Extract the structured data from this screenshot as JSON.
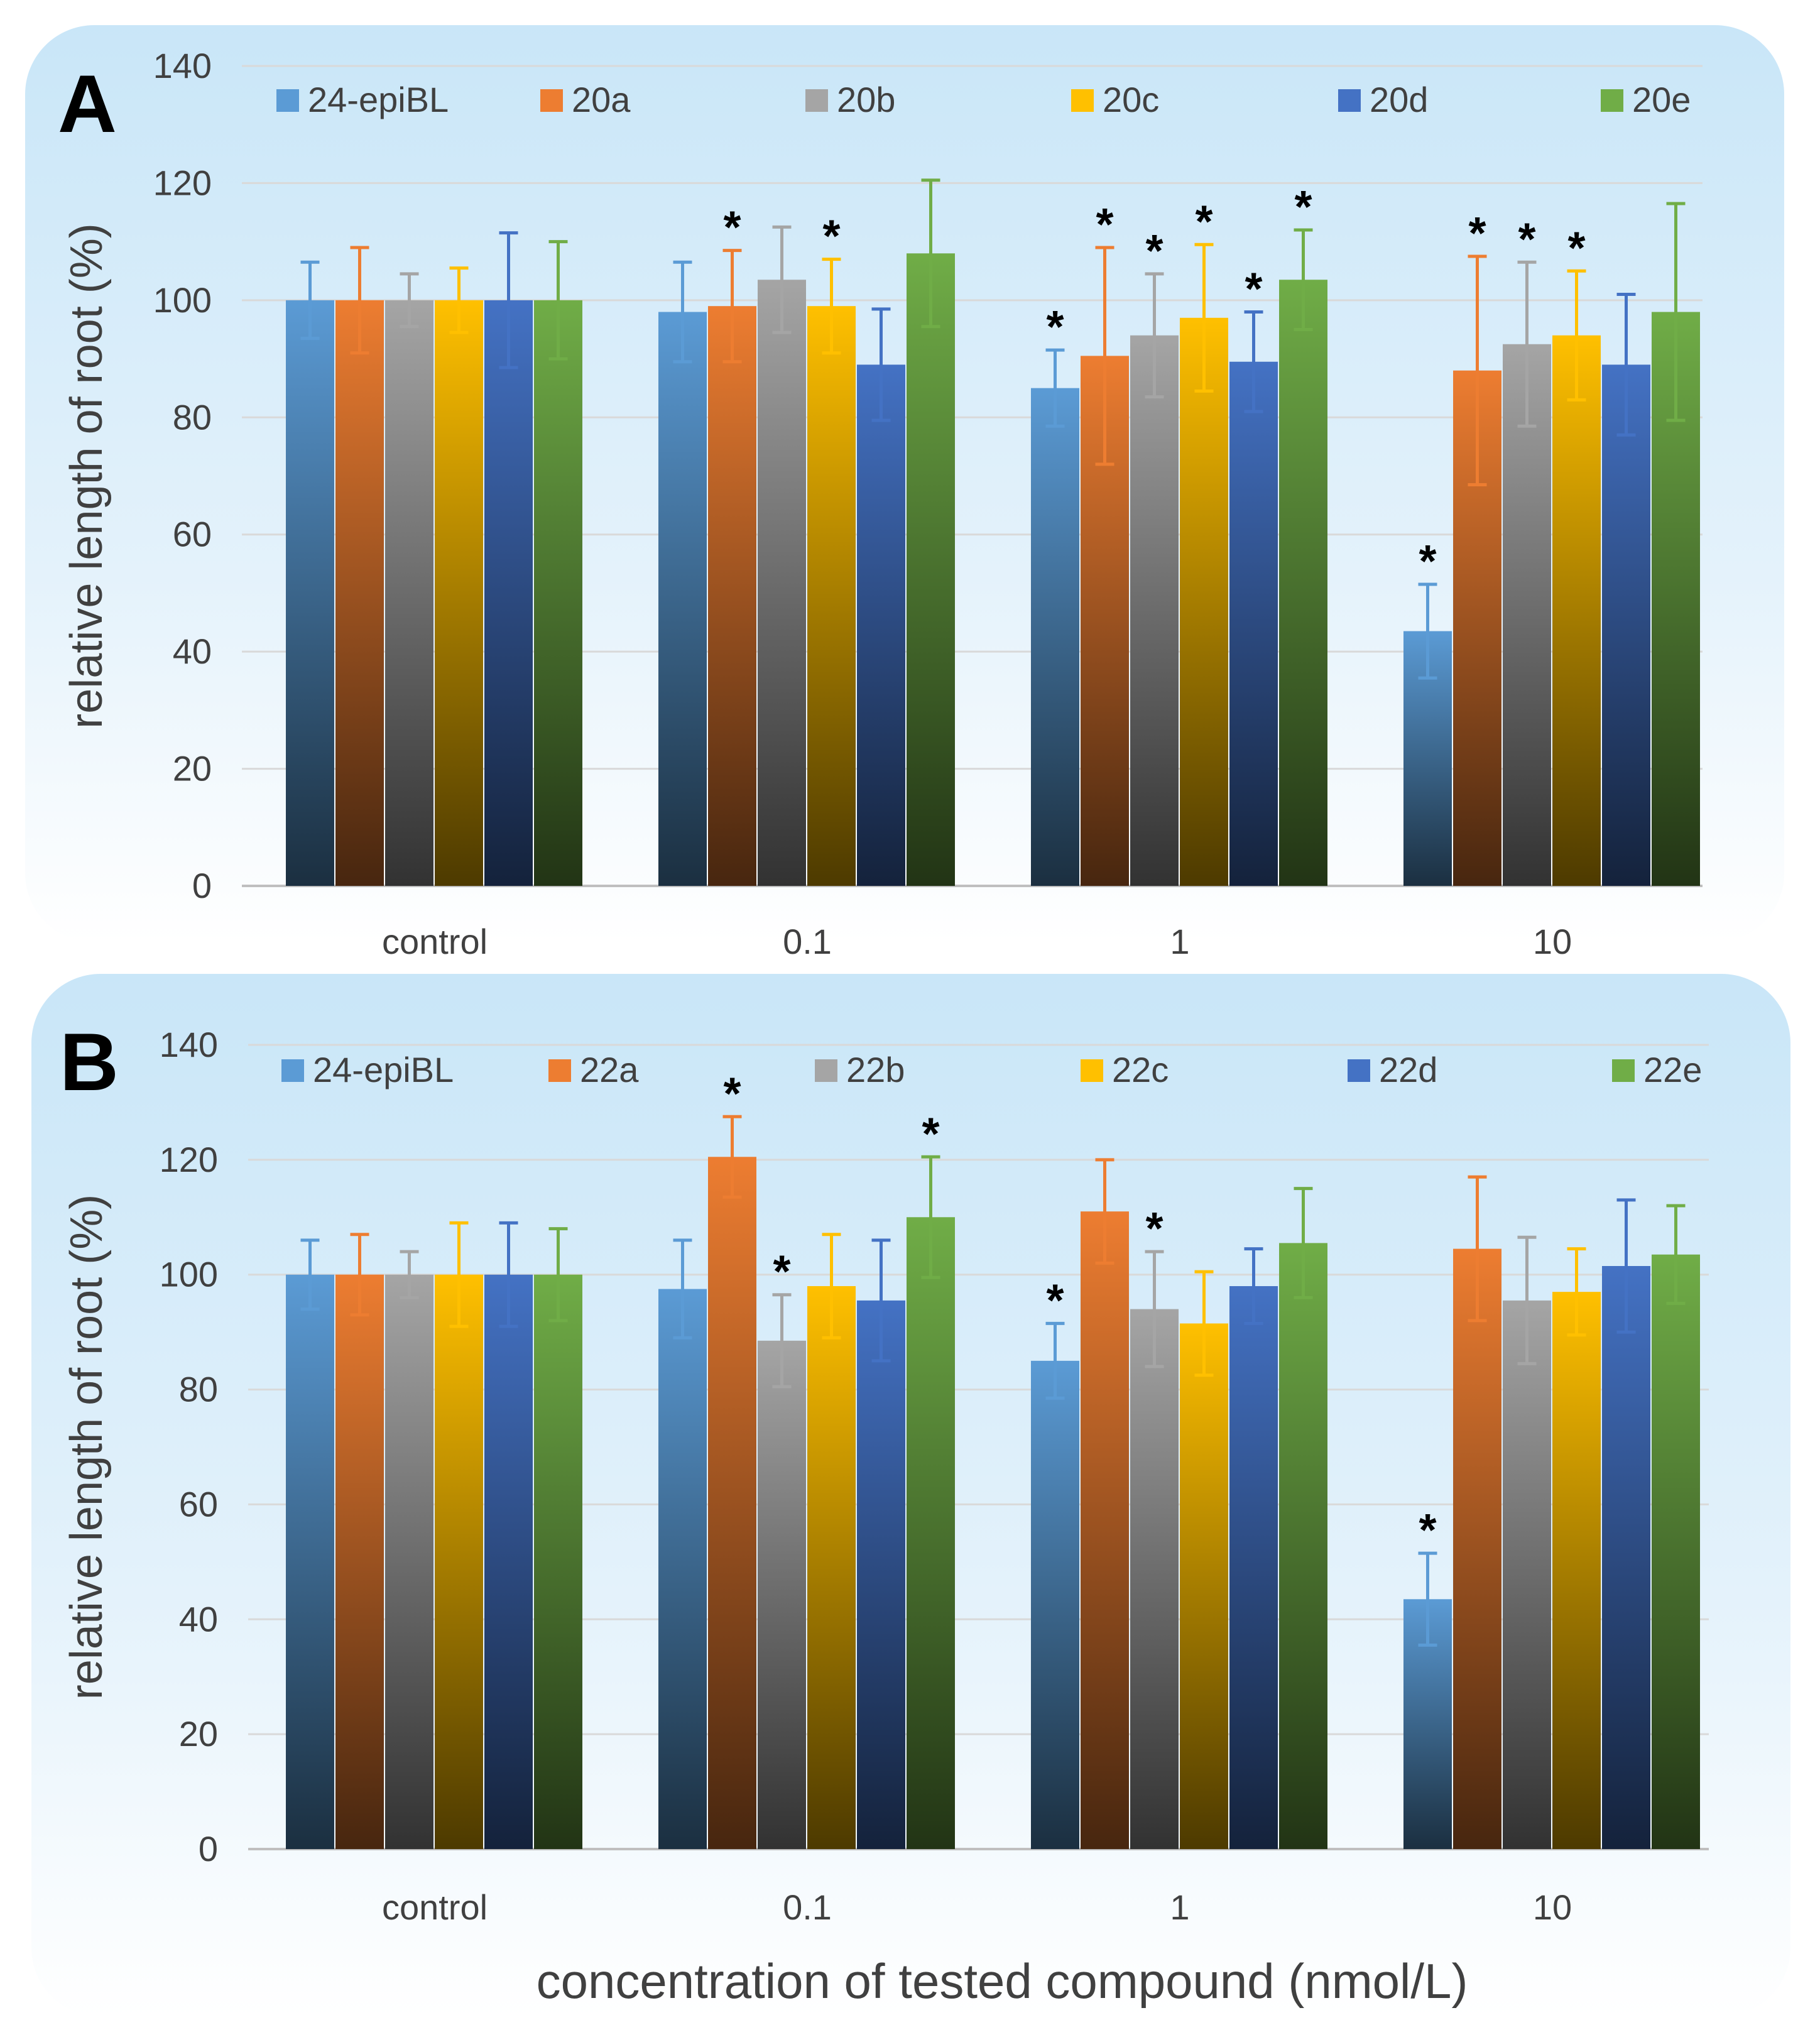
{
  "figure": {
    "xlabel": "concentration of tested compound  (nmol/L)"
  },
  "chart_data": [
    {
      "panel": "A",
      "type": "bar",
      "ylabel": "relative length of root (%)",
      "ylim": [
        0,
        140
      ],
      "yticks": [
        0,
        20,
        40,
        60,
        80,
        100,
        120,
        140
      ],
      "grid": true,
      "legend_placement": "top",
      "categories": [
        "control",
        "0.1",
        "1",
        "10"
      ],
      "series": [
        {
          "name": "24-epiBL",
          "color": "#5B9BD5",
          "values": [
            100,
            98,
            85,
            43.5
          ],
          "errors": [
            6.5,
            8.5,
            6.5,
            8
          ],
          "significant": [
            false,
            false,
            true,
            true
          ]
        },
        {
          "name": "20a",
          "color": "#ED7D31",
          "values": [
            100,
            99,
            90.5,
            88
          ],
          "errors": [
            9,
            9.5,
            18.5,
            19.5
          ],
          "significant": [
            false,
            true,
            true,
            true
          ]
        },
        {
          "name": "20b",
          "color": "#A5A5A5",
          "values": [
            100,
            103.5,
            94,
            92.5
          ],
          "errors": [
            4.5,
            9,
            10.5,
            14
          ],
          "significant": [
            false,
            false,
            true,
            true
          ]
        },
        {
          "name": "20c",
          "color": "#FFC000",
          "values": [
            100,
            99,
            97,
            94
          ],
          "errors": [
            5.5,
            8,
            12.5,
            11
          ],
          "significant": [
            false,
            true,
            true,
            true
          ]
        },
        {
          "name": "20d",
          "color": "#4472C4",
          "values": [
            100,
            89,
            89.5,
            89
          ],
          "errors": [
            11.5,
            9.5,
            8.5,
            12
          ],
          "significant": [
            false,
            false,
            true,
            false
          ]
        },
        {
          "name": "20e",
          "color": "#70AD47",
          "values": [
            100,
            108,
            103.5,
            98
          ],
          "errors": [
            10,
            12.5,
            8.5,
            18.5
          ],
          "significant": [
            false,
            false,
            true,
            false
          ]
        }
      ]
    },
    {
      "panel": "B",
      "type": "bar",
      "ylabel": "relative length of root (%)",
      "ylim": [
        0,
        140
      ],
      "yticks": [
        0,
        20,
        40,
        60,
        80,
        100,
        120,
        140
      ],
      "grid": true,
      "legend_placement": "top",
      "categories": [
        "control",
        "0.1",
        "1",
        "10"
      ],
      "series": [
        {
          "name": "24-epiBL",
          "color": "#5B9BD5",
          "values": [
            100,
            97.5,
            85,
            43.5
          ],
          "errors": [
            6,
            8.5,
            6.5,
            8
          ],
          "significant": [
            false,
            false,
            true,
            true
          ]
        },
        {
          "name": "22a",
          "color": "#ED7D31",
          "values": [
            100,
            120.5,
            111,
            104.5
          ],
          "errors": [
            7,
            7,
            9,
            12.5
          ],
          "significant": [
            false,
            true,
            false,
            false
          ]
        },
        {
          "name": "22b",
          "color": "#A5A5A5",
          "values": [
            100,
            88.5,
            94,
            95.5
          ],
          "errors": [
            4,
            8,
            10,
            11
          ],
          "significant": [
            false,
            true,
            true,
            false
          ]
        },
        {
          "name": "22c",
          "color": "#FFC000",
          "values": [
            100,
            98,
            91.5,
            97
          ],
          "errors": [
            9,
            9,
            9,
            7.5
          ],
          "significant": [
            false,
            false,
            false,
            false
          ]
        },
        {
          "name": "22d",
          "color": "#4472C4",
          "values": [
            100,
            95.5,
            98,
            101.5
          ],
          "errors": [
            9,
            10.5,
            6.5,
            11.5
          ],
          "significant": [
            false,
            false,
            false,
            false
          ]
        },
        {
          "name": "22e",
          "color": "#70AD47",
          "values": [
            100,
            110,
            105.5,
            103.5
          ],
          "errors": [
            8,
            10.5,
            9.5,
            8.5
          ],
          "significant": [
            false,
            true,
            false,
            false
          ]
        }
      ]
    }
  ]
}
